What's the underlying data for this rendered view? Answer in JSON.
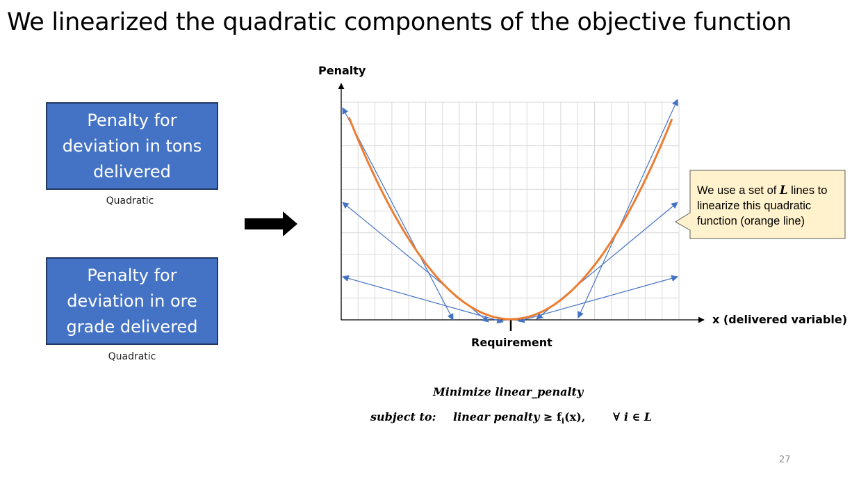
{
  "slide": {
    "title": "We linearized the quadratic components of the objective function",
    "page_number": "27"
  },
  "boxes": [
    {
      "text": "Penalty for deviation in tons delivered",
      "caption": "Quadratic"
    },
    {
      "text": "Penalty for deviation in ore grade delivered",
      "caption": "Quadratic"
    }
  ],
  "chart": {
    "y_label": "Penalty",
    "x_label": "x (delivered variable)",
    "requirement_label": "Requirement",
    "colors": {
      "curve": "#ed7d31",
      "lines": "#4472c4",
      "grid": "#d9d9d9"
    }
  },
  "callout": {
    "text_before": "We use a set of ",
    "symbol": "L",
    "text_after": " lines to linearize this quadratic function (orange line)"
  },
  "formula": {
    "minimize": "Minimize linear_penalty",
    "subject_to": "subject to:",
    "constraint_lhs": "linear penalty ≥ ",
    "constraint_fn": "f",
    "constraint_sub": "i",
    "constraint_arg": "(x),",
    "forall": "∀ i ∈ L"
  }
}
